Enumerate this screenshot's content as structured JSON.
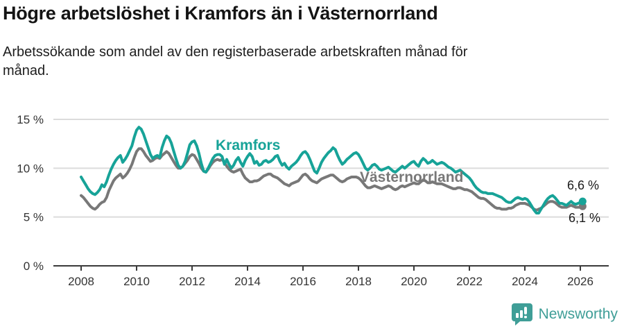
{
  "header": {
    "title": "Högre arbetslöshet i Kramfors än i Västernorrland",
    "subtitle_lines": [
      "Arbetssökande som andel av den registerbaserade arbetskraften månad för",
      "månad."
    ]
  },
  "chart_data": {
    "type": "line",
    "title": "Högre arbetslöshet i Kramfors än i Västernorrland",
    "subtitle": "Arbetssökande som andel av den registerbaserade arbetskraften månad för månad.",
    "x_start": "2008-01",
    "x_end": "2026-02",
    "x_frequency": "monthly",
    "ylim": [
      0,
      15
    ],
    "grid": true,
    "grid_color": "#dcdcdc",
    "axis_color": "#3a3a3a",
    "tick_label_color": "#333333",
    "y_ticks": [
      {
        "value": 0,
        "label": "0 %"
      },
      {
        "value": 5,
        "label": "5 %"
      },
      {
        "value": 10,
        "label": "10 %"
      },
      {
        "value": 15,
        "label": "15 %"
      }
    ],
    "x_ticks": [
      {
        "year": 2008,
        "label": "2008"
      },
      {
        "year": 2010,
        "label": "2010"
      },
      {
        "year": 2012,
        "label": "2012"
      },
      {
        "year": 2014,
        "label": "2014"
      },
      {
        "year": 2016,
        "label": "2016"
      },
      {
        "year": 2018,
        "label": "2018"
      },
      {
        "year": 2020,
        "label": "2020"
      },
      {
        "year": 2022,
        "label": "2022"
      },
      {
        "year": 2024,
        "label": "2024"
      },
      {
        "year": 2026,
        "label": "2026"
      }
    ],
    "legend_position": "inline-labels",
    "series": [
      {
        "name": "Kramfors",
        "color": "#17a398",
        "end_label": "6,6 %",
        "end_value": 6.6,
        "values": [
          9.1,
          8.7,
          8.3,
          7.9,
          7.6,
          7.4,
          7.3,
          7.5,
          7.8,
          8.3,
          8.1,
          8.6,
          9.3,
          9.9,
          10.4,
          10.8,
          11.1,
          11.3,
          10.6,
          10.9,
          11.3,
          11.8,
          12.3,
          13.2,
          13.9,
          14.2,
          14.0,
          13.5,
          12.8,
          12.1,
          11.4,
          11.0,
          11.2,
          11.3,
          11.1,
          12.1,
          12.8,
          13.3,
          13.1,
          12.6,
          11.8,
          11.0,
          10.3,
          10.0,
          10.2,
          10.7,
          11.5,
          12.4,
          12.7,
          12.8,
          12.3,
          11.5,
          10.5,
          9.7,
          9.6,
          10.0,
          10.5,
          11.0,
          11.3,
          11.4,
          11.4,
          11.2,
          10.4,
          10.9,
          10.4,
          10.0,
          10.3,
          10.8,
          11.1,
          10.6,
          10.2,
          10.8,
          11.2,
          11.5,
          11.2,
          10.5,
          10.7,
          10.3,
          10.4,
          10.7,
          10.8,
          10.6,
          10.7,
          10.9,
          11.2,
          11.3,
          10.7,
          10.3,
          10.5,
          10.1,
          9.9,
          10.2,
          10.4,
          10.6,
          10.9,
          11.3,
          11.6,
          11.7,
          11.4,
          10.9,
          10.3,
          9.7,
          9.5,
          10.0,
          10.6,
          11.0,
          11.3,
          11.6,
          11.8,
          12.1,
          11.9,
          11.3,
          10.8,
          10.4,
          10.6,
          10.9,
          11.1,
          11.3,
          11.5,
          11.6,
          11.4,
          11.0,
          10.5,
          10.0,
          9.8,
          10.0,
          10.3,
          10.4,
          10.2,
          9.9,
          9.8,
          9.9,
          10.0,
          10.1,
          9.9,
          9.7,
          9.6,
          9.8,
          10.0,
          10.2,
          10.0,
          10.2,
          10.4,
          10.6,
          10.7,
          10.4,
          10.2,
          10.7,
          11.0,
          10.8,
          10.5,
          10.6,
          10.8,
          10.6,
          10.4,
          10.5,
          10.6,
          10.5,
          10.3,
          10.1,
          10.0,
          9.8,
          9.6,
          9.7,
          9.8,
          9.6,
          9.4,
          9.2,
          9.0,
          8.7,
          8.3,
          8.0,
          7.8,
          7.6,
          7.5,
          7.5,
          7.4,
          7.4,
          7.4,
          7.3,
          7.2,
          7.1,
          7.0,
          6.8,
          6.6,
          6.5,
          6.5,
          6.7,
          6.9,
          7.0,
          6.9,
          6.8,
          6.9,
          6.8,
          6.5,
          6.1,
          5.7,
          5.4,
          5.4,
          5.8,
          6.2,
          6.6,
          6.9,
          7.1,
          7.2,
          7.0,
          6.7,
          6.4,
          6.4,
          6.3,
          6.2,
          6.4,
          6.6,
          6.4,
          6.3,
          6.4,
          6.5,
          6.6
        ]
      },
      {
        "name": "Västernorrland",
        "color": "#787878",
        "end_label": "6,1 %",
        "end_value": 6.1,
        "values": [
          7.2,
          7.0,
          6.7,
          6.4,
          6.1,
          5.9,
          5.8,
          6.0,
          6.3,
          6.5,
          6.6,
          7.0,
          7.7,
          8.2,
          8.7,
          9.0,
          9.2,
          9.4,
          9.0,
          9.2,
          9.5,
          9.9,
          10.4,
          11.1,
          11.7,
          12.0,
          12.0,
          11.7,
          11.3,
          11.0,
          10.7,
          10.8,
          11.0,
          11.1,
          11.0,
          11.3,
          11.5,
          11.7,
          11.5,
          11.1,
          10.7,
          10.3,
          10.0,
          10.0,
          10.2,
          10.5,
          10.8,
          11.2,
          11.4,
          11.3,
          10.9,
          10.5,
          10.0,
          9.7,
          9.6,
          9.9,
          10.3,
          10.6,
          10.8,
          10.9,
          10.8,
          10.9,
          10.6,
          10.2,
          9.9,
          9.7,
          9.6,
          9.7,
          9.8,
          9.9,
          9.4,
          9.0,
          8.8,
          8.6,
          8.6,
          8.7,
          8.7,
          8.8,
          9.0,
          9.2,
          9.3,
          9.4,
          9.4,
          9.2,
          9.1,
          9.0,
          8.8,
          8.6,
          8.4,
          8.3,
          8.2,
          8.4,
          8.5,
          8.6,
          8.7,
          9.0,
          9.3,
          9.4,
          9.2,
          8.9,
          8.7,
          8.6,
          8.5,
          8.7,
          8.9,
          9.0,
          9.1,
          9.2,
          9.3,
          9.3,
          9.1,
          8.9,
          8.7,
          8.6,
          8.7,
          8.9,
          9.0,
          9.1,
          9.1,
          9.1,
          9.0,
          8.8,
          8.5,
          8.2,
          8.0,
          8.0,
          8.1,
          8.2,
          8.1,
          8.0,
          7.9,
          8.0,
          8.1,
          8.2,
          8.1,
          7.9,
          7.8,
          7.9,
          8.1,
          8.2,
          8.1,
          8.2,
          8.3,
          8.4,
          8.5,
          8.4,
          8.4,
          8.6,
          8.8,
          8.7,
          8.5,
          8.5,
          8.6,
          8.5,
          8.4,
          8.4,
          8.4,
          8.3,
          8.2,
          8.1,
          8.0,
          7.9,
          7.9,
          8.0,
          8.0,
          7.9,
          7.8,
          7.8,
          7.7,
          7.6,
          7.4,
          7.2,
          7.0,
          6.9,
          6.9,
          6.8,
          6.6,
          6.4,
          6.2,
          6.0,
          5.9,
          5.9,
          5.8,
          5.8,
          5.8,
          5.9,
          5.9,
          6.0,
          6.2,
          6.3,
          6.4,
          6.4,
          6.4,
          6.3,
          6.2,
          6.0,
          5.8,
          5.7,
          5.8,
          5.9,
          6.1,
          6.3,
          6.5,
          6.6,
          6.6,
          6.5,
          6.3,
          6.1,
          6.0,
          6.0,
          6.0,
          6.1,
          6.2,
          6.1,
          6.0,
          6.0,
          6.0,
          6.1
        ]
      }
    ]
  },
  "footer": {
    "brand": "Newsworthy",
    "brand_color": "#3f9e97",
    "icon": "newsworthy-logo-icon"
  }
}
